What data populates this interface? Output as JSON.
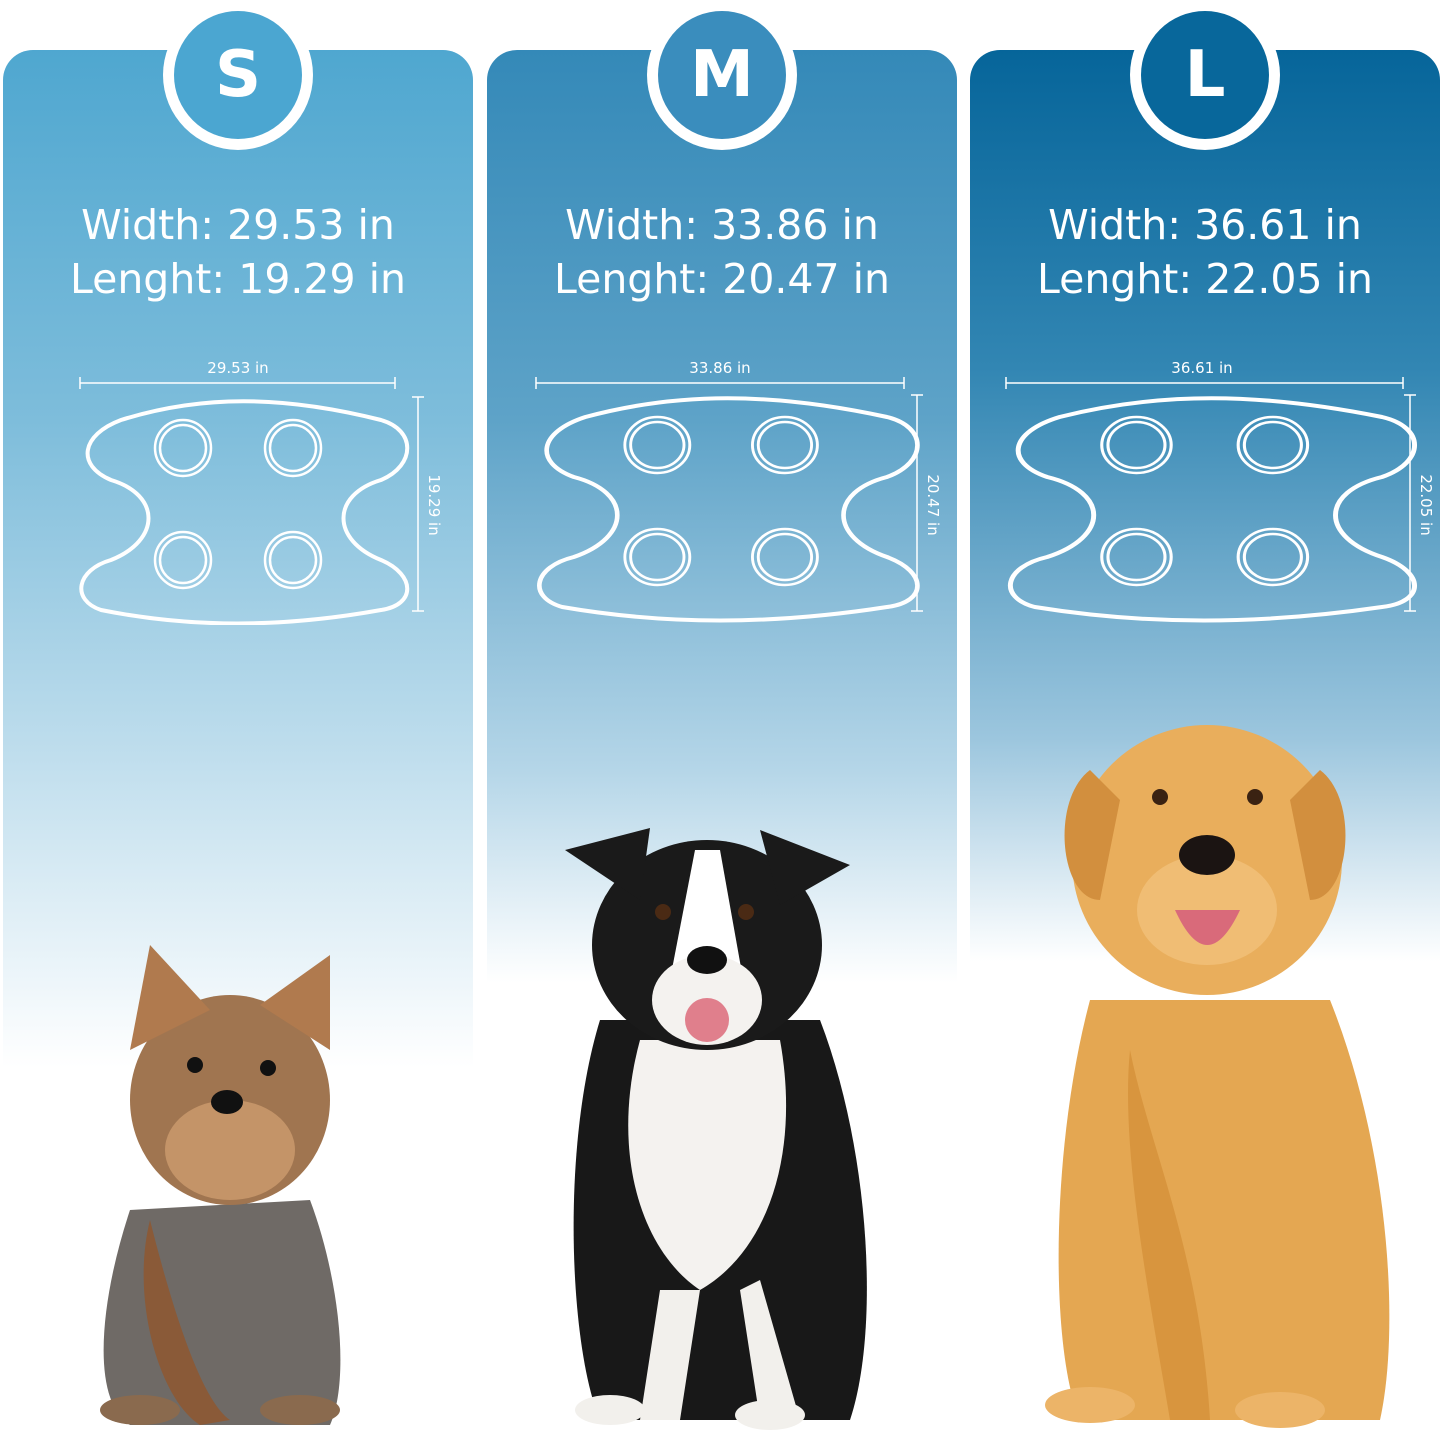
{
  "sizes": [
    {
      "label": "S",
      "width_text": "Width: 29.53 in",
      "length_text": "Lenght: 19.29 in",
      "diagram_width": "29.53 in",
      "diagram_length": "19.29 in",
      "color": "#4ba6d1",
      "dog": "Yorkshire Terrier"
    },
    {
      "label": "M",
      "width_text": "Width: 33.86 in",
      "length_text": "Lenght: 20.47 in",
      "diagram_width": "33.86 in",
      "diagram_length": "20.47 in",
      "color": "#3a8dbd",
      "dog": "Border Collie"
    },
    {
      "label": "L",
      "width_text": "Width: 36.61 in",
      "length_text": "Lenght: 22.05 in",
      "diagram_width": "36.61 in",
      "diagram_length": "22.05 in",
      "color": "#08679b",
      "dog": "Golden Retriever"
    }
  ]
}
